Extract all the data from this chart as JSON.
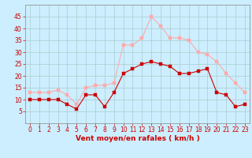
{
  "hours": [
    0,
    1,
    2,
    3,
    4,
    5,
    6,
    7,
    8,
    9,
    10,
    11,
    12,
    13,
    14,
    15,
    16,
    17,
    18,
    19,
    20,
    21,
    22,
    23
  ],
  "vent_moyen": [
    10,
    10,
    10,
    10,
    8,
    6,
    12,
    12,
    7,
    13,
    21,
    23,
    25,
    26,
    25,
    24,
    21,
    21,
    22,
    23,
    13,
    12,
    7,
    8
  ],
  "rafales": [
    13,
    13,
    13,
    14,
    12,
    8,
    15,
    16,
    16,
    17,
    33,
    33,
    36,
    45,
    41,
    36,
    36,
    35,
    30,
    29,
    26,
    21,
    17,
    13
  ],
  "xlabel": "Vent moyen/en rafales ( km/h )",
  "ylim": [
    0,
    50
  ],
  "yticks": [
    5,
    10,
    15,
    20,
    25,
    30,
    35,
    40,
    45
  ],
  "xticks": [
    0,
    1,
    2,
    3,
    4,
    5,
    6,
    7,
    8,
    9,
    10,
    11,
    12,
    13,
    14,
    15,
    16,
    17,
    18,
    19,
    20,
    21,
    22,
    23
  ],
  "bg_color": "#cceeff",
  "line_color_mean": "#cc0000",
  "line_color_gust": "#ffaaaa",
  "grid_color": "#aacccc",
  "marker_size": 2.5,
  "xlabel_color": "#cc0000",
  "xlabel_fontsize": 6.5,
  "tick_fontsize": 5.5
}
